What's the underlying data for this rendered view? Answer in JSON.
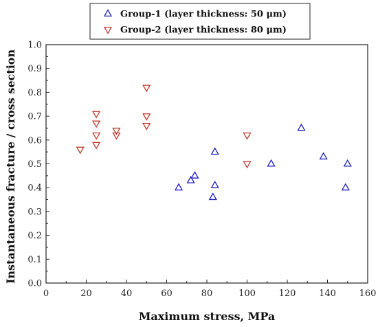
{
  "chart_data": {
    "type": "scatter",
    "xlabel": "Maximum stress, MPa",
    "ylabel": "Instantaneous fracture / cross section",
    "xlim": [
      0,
      160
    ],
    "ylim": [
      0.0,
      1.0
    ],
    "x_ticks": [
      0,
      20,
      40,
      60,
      80,
      100,
      120,
      140,
      160
    ],
    "y_ticks": [
      0.0,
      0.1,
      0.2,
      0.3,
      0.4,
      0.5,
      0.6,
      0.7,
      0.8,
      0.9,
      1.0
    ],
    "grid": false,
    "legend_position": "top-center",
    "series": [
      {
        "name": "Group-1 (layer thickness: 50 μm)",
        "marker": "triangle-up",
        "color": "#1f1fbf",
        "points": [
          {
            "x": 66,
            "y": 0.4
          },
          {
            "x": 72,
            "y": 0.43
          },
          {
            "x": 74,
            "y": 0.45
          },
          {
            "x": 83,
            "y": 0.36
          },
          {
            "x": 84,
            "y": 0.41
          },
          {
            "x": 84,
            "y": 0.55
          },
          {
            "x": 112,
            "y": 0.5
          },
          {
            "x": 127,
            "y": 0.65
          },
          {
            "x": 138,
            "y": 0.53
          },
          {
            "x": 149,
            "y": 0.4
          },
          {
            "x": 150,
            "y": 0.5
          }
        ]
      },
      {
        "name": "Group-2 (layer thickness: 80 μm)",
        "marker": "triangle-down",
        "color": "#c0392b",
        "points": [
          {
            "x": 17,
            "y": 0.56
          },
          {
            "x": 25,
            "y": 0.58
          },
          {
            "x": 25,
            "y": 0.62
          },
          {
            "x": 25,
            "y": 0.67
          },
          {
            "x": 25,
            "y": 0.71
          },
          {
            "x": 35,
            "y": 0.62
          },
          {
            "x": 35,
            "y": 0.64
          },
          {
            "x": 50,
            "y": 0.66
          },
          {
            "x": 50,
            "y": 0.7
          },
          {
            "x": 50,
            "y": 0.82
          },
          {
            "x": 100,
            "y": 0.5
          },
          {
            "x": 100,
            "y": 0.62
          }
        ]
      }
    ]
  }
}
